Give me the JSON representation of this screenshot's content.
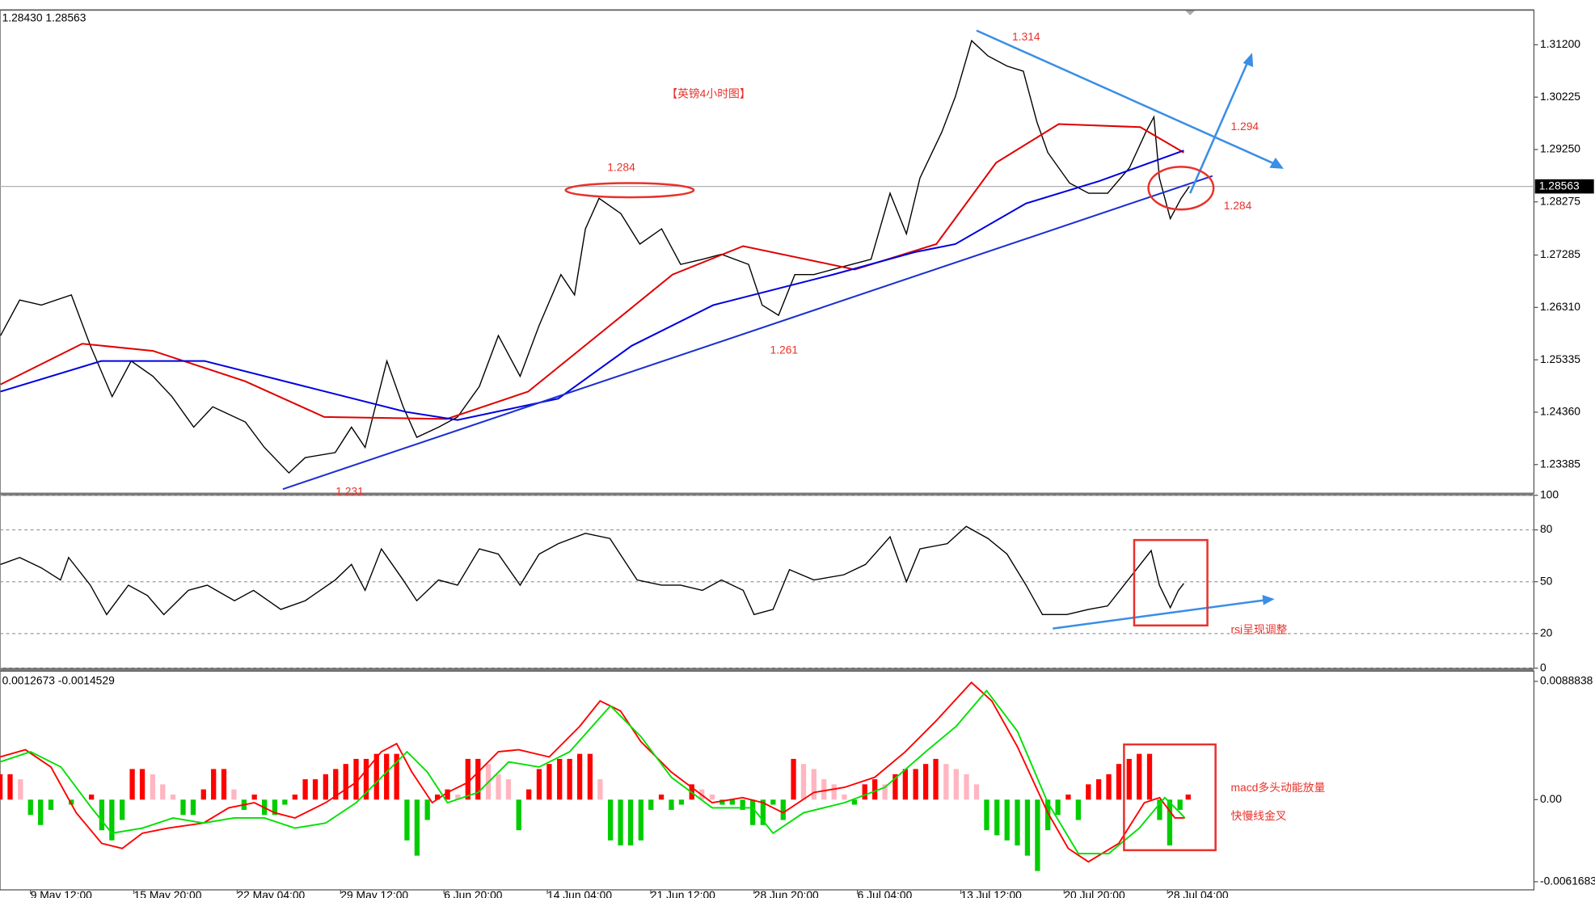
{
  "chart_data": [
    {
      "type": "line",
      "header": "1.28430 1.28563",
      "xlim": [
        -11.2,
        552.7
      ],
      "ylim": [
        1.22851,
        1.31844
      ],
      "yticks": [
        {
          "value": 1.312,
          "label": "1.31200"
        },
        {
          "value": 1.30225,
          "label": "1.30225"
        },
        {
          "value": 1.2925,
          "label": "1.29250"
        },
        {
          "value": 1.28275,
          "label": "1.28275"
        },
        {
          "value": 1.27285,
          "label": "1.27285"
        },
        {
          "value": 1.2631,
          "label": "1.26310"
        },
        {
          "value": 1.25335,
          "label": "1.25335"
        },
        {
          "value": 1.2436,
          "label": "1.24360"
        },
        {
          "value": 1.23385,
          "label": "1.23385"
        }
      ],
      "current_price": {
        "value": 1.28563,
        "label": "1.28563"
      },
      "series": [
        {
          "color": "#000000",
          "x": [
            -11,
            -4,
            4,
            15,
            22,
            30,
            37,
            45,
            52,
            60,
            67,
            79,
            86,
            95,
            101,
            112,
            118,
            123,
            131,
            137,
            142,
            150,
            157,
            165,
            172,
            180,
            187,
            195,
            200,
            204,
            209,
            217,
            224,
            232,
            239,
            247,
            254,
            264,
            269,
            275,
            281,
            288,
            299,
            309,
            316,
            322,
            327,
            335,
            340,
            346,
            352,
            359,
            365,
            370,
            374,
            382,
            389,
            396,
            404,
            410,
            413,
            415,
            419,
            423,
            426
          ],
          "values": [
            1.25785,
            1.26448,
            1.26353,
            1.26543,
            1.25596,
            1.2465,
            1.25312,
            1.25028,
            1.2465,
            1.24082,
            1.2446,
            1.24176,
            1.23703,
            1.2323,
            1.23514,
            1.23608,
            1.24082,
            1.23703,
            1.25312,
            1.2446,
            1.23892,
            1.24082,
            1.24271,
            1.24839,
            1.25785,
            1.25028,
            1.25975,
            1.26921,
            1.26543,
            1.27773,
            1.28341,
            1.28057,
            1.27489,
            1.27773,
            1.27111,
            1.27205,
            1.273,
            1.27111,
            1.26353,
            1.26164,
            1.26921,
            1.26921,
            1.27073,
            1.27205,
            1.28436,
            1.27679,
            1.2872,
            1.29572,
            1.30234,
            1.31276,
            1.30992,
            1.30802,
            1.30708,
            1.29761,
            1.29193,
            1.28625,
            1.28436,
            1.28436,
            1.28909,
            1.29572,
            1.29856,
            1.2872,
            1.27963,
            1.28341,
            1.28563
          ]
        },
        {
          "color": "#e00000",
          "x": [
            -11,
            19,
            45,
            79,
            108,
            153,
            183,
            213,
            236,
            262,
            303,
            333,
            355,
            378,
            408,
            424
          ],
          "values": [
            1.24877,
            1.25634,
            1.25501,
            1.24934,
            1.24271,
            1.24233,
            1.24744,
            1.25975,
            1.26921,
            1.27451,
            1.27016,
            1.27489,
            1.29004,
            1.29723,
            1.29667,
            1.29193
          ]
        },
        {
          "color": "#0000e0",
          "x": [
            -11,
            26,
            64,
            101,
            138,
            157,
            194,
            221,
            251,
            295,
            325,
            340,
            366,
            393,
            424
          ],
          "values": [
            1.24744,
            1.25312,
            1.25312,
            1.24839,
            1.24365,
            1.24214,
            1.24612,
            1.25596,
            1.26353,
            1.26921,
            1.27338,
            1.27489,
            1.28247,
            1.28663,
            1.29231
          ]
        }
      ],
      "annotations": [
        "【英镑4小时图】",
        "1.314",
        "1.294",
        "1.284",
        "1.284",
        "1.261",
        "1.231"
      ]
    },
    {
      "type": "line",
      "xlim": [
        -11.2,
        552.7
      ],
      "ylim": [
        0,
        100
      ],
      "yticks": [
        0,
        20,
        50,
        80,
        100
      ],
      "grid": true,
      "x": [
        -11,
        -4,
        4,
        11,
        14,
        22,
        28,
        36,
        43,
        49,
        58,
        65,
        75,
        82,
        92,
        101,
        112,
        118,
        123,
        129,
        137,
        142,
        150,
        157,
        165,
        172,
        180,
        187,
        194,
        204,
        213,
        223,
        232,
        239,
        247,
        254,
        262,
        266,
        273,
        279,
        288,
        299,
        307,
        316,
        322,
        327,
        337,
        344,
        352,
        359,
        366,
        372,
        381,
        389,
        396,
        402,
        408,
        412,
        415,
        419,
        422,
        424
      ],
      "series": [
        {
          "color": "#000000",
          "values": [
            60,
            64,
            58,
            51,
            64,
            48,
            31,
            48,
            42,
            31,
            45,
            48,
            39,
            45,
            34,
            39,
            51,
            60,
            45,
            69,
            51,
            39,
            51,
            48,
            69,
            66,
            48,
            66,
            72,
            78,
            75,
            51,
            48,
            48,
            45,
            51,
            45,
            31,
            34,
            57,
            51,
            54,
            60,
            76,
            50,
            69,
            72,
            82,
            75,
            66,
            48,
            31,
            31,
            34,
            36,
            48,
            60,
            68,
            48,
            35,
            45,
            49
          ]
        }
      ],
      "annotations": [
        "rsi呈现调整"
      ]
    },
    {
      "type": "bar",
      "header": "0.0012673 -0.0014529",
      "xlim": [
        -11.2,
        552.7
      ],
      "ylim": [
        -0.0061683,
        0.0088838
      ],
      "yticks": [
        0.0088838,
        {
          "value": 0,
          "label": "0.00"
        },
        -0.0061683
      ],
      "xticks": [
        {
          "value": 0,
          "label": "9 May 12:00"
        },
        {
          "value": 38,
          "label": "15 May 20:00"
        },
        {
          "value": 76,
          "label": "22 May 04:00"
        },
        {
          "value": 114,
          "label": "29 May 12:00"
        },
        {
          "value": 152,
          "label": "6 Jun 20:00"
        },
        {
          "value": 190,
          "label": "14 Jun 04:00"
        },
        {
          "value": 228,
          "label": "21 Jun 12:00"
        },
        {
          "value": 266,
          "label": "28 Jun 20:00"
        },
        {
          "value": 304,
          "label": "6 Jul 04:00"
        },
        {
          "value": 342,
          "label": "13 Jul 12:00"
        },
        {
          "value": 380,
          "label": "20 Jul 20:00"
        },
        {
          "value": 418,
          "label": "28 Jul 04:00"
        }
      ],
      "colors": {
        "up": "#ff0000",
        "fade": "#ffb6c1",
        "down": "#00cc00"
      },
      "x": [
        -11.2,
        -7.5,
        -3.7,
        0,
        3.7,
        7.5,
        11.2,
        15.0,
        18.7,
        22.4,
        26.2,
        29.9,
        33.7,
        37.4,
        41.1,
        44.9,
        48.6,
        52.4,
        56.1,
        59.8,
        63.6,
        67.3,
        71.1,
        74.8,
        78.5,
        82.3,
        86.0,
        89.8,
        93.5,
        97.2,
        101.0,
        104.7,
        108.5,
        112.2,
        115.9,
        119.7,
        123.4,
        127.2,
        130.9,
        134.6,
        138.4,
        142.1,
        145.9,
        149.6,
        153.3,
        157.1,
        160.8,
        164.5,
        168.3,
        172.0,
        175.7,
        179.5,
        183.2,
        187.0,
        190.7,
        194.5,
        198.2,
        201.9,
        205.7,
        209.4,
        213.2,
        216.9,
        220.6,
        224.4,
        228.1,
        231.9,
        235.6,
        239.3,
        243.1,
        246.8,
        250.6,
        254.3,
        258.0,
        261.8,
        265.5,
        269.3,
        273.0,
        276.7,
        280.5,
        284.2,
        288.0,
        291.7,
        295.4,
        299.2,
        302.9,
        306.7,
        310.4,
        314.1,
        317.9,
        321.6,
        325.4,
        329.1,
        332.8,
        336.6,
        340.3,
        344.1,
        347.8,
        351.5,
        355.3,
        359.0,
        362.8,
        366.5,
        370.2,
        374.0,
        377.7,
        381.5,
        385.2,
        388.9,
        392.7,
        396.4,
        400.1,
        403.9,
        407.6,
        411.4,
        415.1,
        418.8,
        422.6,
        425.6
      ],
      "values": [
        0.00191,
        0.00191,
        0.00153,
        -0.00115,
        -0.00191,
        -0.00077,
        0,
        -0.00038,
        0,
        0.00038,
        -0.0023,
        -0.00306,
        -0.00153,
        0.0023,
        0.0023,
        0.00191,
        0.00115,
        0.00038,
        -0.00115,
        -0.00115,
        0.00077,
        0.0023,
        0.0023,
        0.00077,
        -0.00077,
        0.00038,
        -0.00115,
        -0.00115,
        -0.00038,
        0.00038,
        0.00153,
        0.00153,
        0.00191,
        0.0023,
        0.00268,
        0.00306,
        0.00306,
        0.00344,
        0.00344,
        0.00344,
        -0.00306,
        -0.00421,
        -0.00153,
        0.00038,
        0.00077,
        0.00038,
        0.00306,
        0.00306,
        0.00268,
        0.00191,
        0.00153,
        -0.0023,
        0.00077,
        0.0023,
        0.00268,
        0.00306,
        0.00306,
        0.00344,
        0.00344,
        0.00153,
        -0.00306,
        -0.00344,
        -0.00344,
        -0.00306,
        -0.00077,
        0.00038,
        -0.00077,
        -0.00038,
        0.00115,
        0.00077,
        0.00038,
        -0.00038,
        -0.00038,
        -0.00077,
        -0.00191,
        -0.00191,
        -0.00038,
        -0.00153,
        0.00306,
        0.00268,
        0.0023,
        0.00153,
        0.00115,
        0.00038,
        -0.00038,
        0.00115,
        0.00153,
        0.00115,
        0.00191,
        0.0023,
        0.0023,
        0.00268,
        0.00306,
        0.00268,
        0.0023,
        0.00191,
        0.00115,
        -0.0023,
        -0.00268,
        -0.00306,
        -0.00344,
        -0.00421,
        -0.00536,
        -0.0023,
        -0.00115,
        0.00038,
        -0.00153,
        0.00115,
        0.00153,
        0.00191,
        0.00268,
        0.00306,
        0.00344,
        0.00344,
        -0.00153,
        -0.00344,
        -0.00077,
        0.00038
      ],
      "lines": [
        {
          "color": "#ff0000",
          "x": [
            -11.2,
            -1.9,
            7.5,
            16.8,
            26.2,
            33.7,
            41.1,
            50.5,
            63.6,
            72.9,
            82.3,
            89.8,
            97.2,
            108.5,
            119.7,
            129.0,
            134.6,
            140.2,
            147.7,
            153.3,
            160.8,
            172.0,
            179.5,
            190.7,
            201.9,
            209.4,
            216.9,
            224.4,
            235.6,
            250.6,
            261.8,
            269.3,
            276.7,
            288.0,
            299.2,
            310.4,
            321.6,
            332.8,
            345.9,
            353.4,
            362.8,
            374.0,
            381.5,
            388.9,
            400.1,
            409.5,
            415.1,
            420.7,
            424.4
          ],
          "values": [
            0.00321,
            0.00375,
            0.00245,
            -0.00099,
            -0.00329,
            -0.00367,
            -0.00252,
            -0.00214,
            -0.00176,
            -0.00061,
            -0.00023,
            -0.00099,
            -0.00138,
            -0.00023,
            0.0013,
            0.0036,
            0.00421,
            0.00207,
            -0.00023,
            0.00054,
            0.0013,
            0.0036,
            0.00375,
            0.00321,
            0.00551,
            0.00742,
            0.00666,
            0.00436,
            0.00207,
            -0.00023,
            0.00015,
            -0.00023,
            -0.00099,
            0.00054,
            0.00092,
            0.00168,
            0.0036,
            0.00589,
            0.0088,
            0.00742,
            0.00398,
            -0.00099,
            -0.00367,
            -0.00467,
            -0.00329,
            -0.00023,
            0.00015,
            -0.00138,
            -0.00138
          ]
        },
        {
          "color": "#00e000",
          "x": [
            -11.2,
            0,
            11.2,
            22.4,
            29.9,
            41.1,
            52.4,
            63.6,
            74.8,
            86.0,
            97.2,
            108.5,
            119.7,
            130.9,
            138.4,
            145.9,
            153.3,
            164.5,
            175.8,
            187.0,
            198.2,
            213.2,
            224.4,
            235.6,
            250.6,
            265.5,
            273.0,
            284.2,
            299.2,
            314.1,
            329.1,
            340.3,
            351.5,
            362.8,
            374.0,
            385.2,
            396.4,
            407.6,
            417.0,
            422.6,
            424.4
          ],
          "values": [
            0.00283,
            0.0036,
            0.00245,
            -0.00061,
            -0.00252,
            -0.00214,
            -0.00138,
            -0.00176,
            -0.00138,
            -0.00138,
            -0.00214,
            -0.00176,
            -0.00023,
            0.00207,
            0.0036,
            0.00207,
            -0.00023,
            0.00054,
            0.00283,
            0.00245,
            0.0036,
            0.00704,
            0.00474,
            0.00168,
            -0.00061,
            -0.00061,
            -0.00252,
            -0.00099,
            -0.00023,
            0.00092,
            0.0036,
            0.00551,
            0.00819,
            0.00513,
            -0.00023,
            -0.00405,
            -0.00405,
            -0.00214,
            0.00015,
            -0.00099,
            -0.00138
          ]
        }
      ],
      "annotations": [
        "macd多头动能放量",
        "快慢线金叉"
      ]
    }
  ]
}
